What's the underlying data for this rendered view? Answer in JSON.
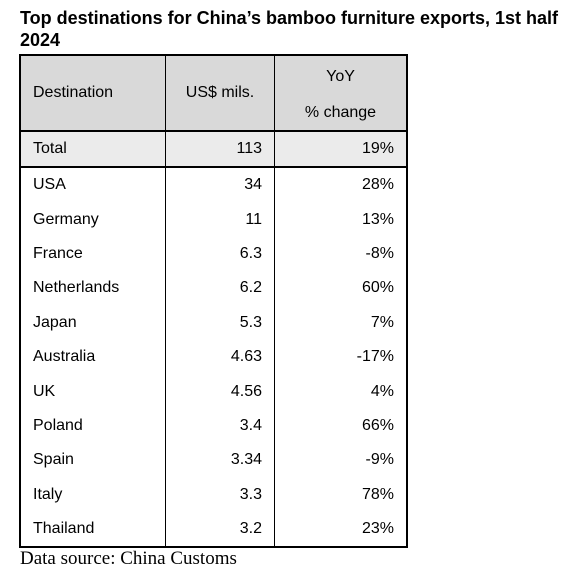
{
  "title": "Top destinations for China’s bamboo furniture exports, 1st half 2024",
  "source": "Data source: China Customs",
  "chart_data": {
    "type": "table",
    "title": "Top destinations for China’s bamboo furniture exports, 1st half 2024",
    "columns": [
      "Destination",
      "US$ mils.",
      "YoY % change"
    ],
    "header": {
      "destination": "Destination",
      "value": "US$ mils.",
      "yoy_line1": "YoY",
      "yoy_line2": "% change"
    },
    "total": {
      "destination": "Total",
      "value": "113",
      "yoy": "19%"
    },
    "rows": [
      {
        "destination": "USA",
        "value": "34",
        "yoy": "28%"
      },
      {
        "destination": "Germany",
        "value": "11",
        "yoy": "13%"
      },
      {
        "destination": "France",
        "value": "6.3",
        "yoy": "-8%"
      },
      {
        "destination": "Netherlands",
        "value": "6.2",
        "yoy": "60%"
      },
      {
        "destination": "Japan",
        "value": "5.3",
        "yoy": "7%"
      },
      {
        "destination": "Australia",
        "value": "4.63",
        "yoy": "-17%"
      },
      {
        "destination": "UK",
        "value": "4.56",
        "yoy": "4%"
      },
      {
        "destination": "Poland",
        "value": "3.4",
        "yoy": "66%"
      },
      {
        "destination": "Spain",
        "value": "3.34",
        "yoy": "-9%"
      },
      {
        "destination": "Italy",
        "value": "3.3",
        "yoy": "78%"
      },
      {
        "destination": "Thailand",
        "value": "3.2",
        "yoy": "23%"
      }
    ]
  }
}
